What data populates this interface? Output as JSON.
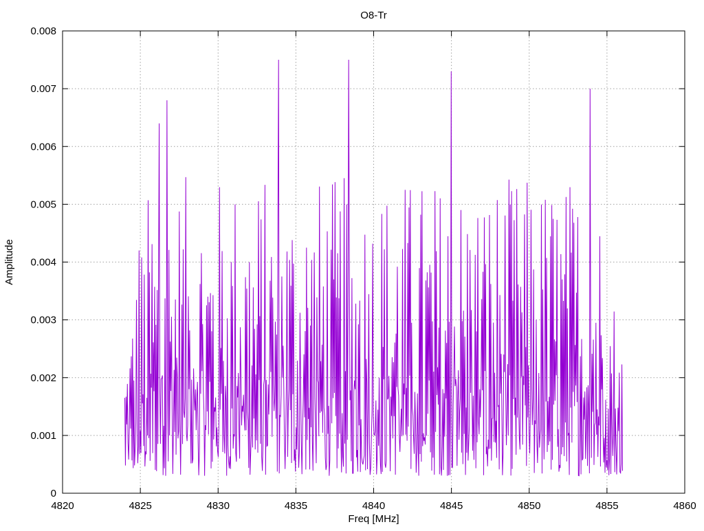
{
  "chart_data": {
    "type": "line",
    "title": "O8-Tr",
    "xlabel": "Freq [MHz]",
    "ylabel": "Amplitude",
    "xlim": [
      4820,
      4860
    ],
    "ylim": [
      0,
      0.008
    ],
    "x_ticks": [
      "4820",
      "4825",
      "4830",
      "4835",
      "4840",
      "4845",
      "4850",
      "4855",
      "4860"
    ],
    "y_ticks": [
      "0",
      "0.001",
      "0.002",
      "0.003",
      "0.004",
      "0.005",
      "0.006",
      "0.007",
      "0.008"
    ],
    "grid": true,
    "legend": "none",
    "series": [
      {
        "color": "#9400d3",
        "x_start": 4824.0,
        "x_end": 4856.0,
        "point_count": 768,
        "peaks": [
          {
            "x": 4824.9,
            "y": 0.0042
          },
          {
            "x": 4826.2,
            "y": 0.0064
          },
          {
            "x": 4826.7,
            "y": 0.0068
          },
          {
            "x": 4833.9,
            "y": 0.0075
          },
          {
            "x": 4838.4,
            "y": 0.0075
          },
          {
            "x": 4845.0,
            "y": 0.0073
          },
          {
            "x": 4853.9,
            "y": 0.007
          }
        ],
        "band": {
          "low": 0.0003,
          "high": 0.0055
        }
      }
    ]
  }
}
